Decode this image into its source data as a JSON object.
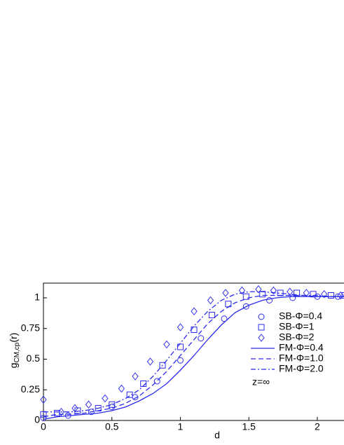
{
  "chart_data": {
    "type": "line",
    "xlabel": "d",
    "ylabel": {
      "base": "g",
      "subscript": "CM,cp",
      "suffix": "(r)"
    },
    "annotation": "z=∞",
    "xlim": [
      0,
      2.2
    ],
    "ylim": [
      0,
      1.12
    ],
    "xticks": [
      0,
      0.5,
      1,
      1.5,
      2
    ],
    "yticks": [
      0,
      0.25,
      0.5,
      0.75,
      1
    ],
    "series": [
      {
        "name": "SB-Φ=0.4",
        "color": "#2b2bef",
        "marker": "circle",
        "x": [
          0.0,
          0.18,
          0.35,
          0.5,
          0.67,
          0.83,
          1.0,
          1.15,
          1.32,
          1.48,
          1.65,
          1.82,
          2.0,
          2.15
        ],
        "values": [
          0.02,
          0.04,
          0.07,
          0.11,
          0.19,
          0.32,
          0.49,
          0.67,
          0.83,
          0.93,
          0.98,
          1.0,
          1.01,
          1.01
        ]
      },
      {
        "name": "SB-Φ=1",
        "color": "#2b2bef",
        "marker": "square",
        "x": [
          0.0,
          0.1,
          0.25,
          0.4,
          0.5,
          0.63,
          0.73,
          0.87,
          1.0,
          1.1,
          1.23,
          1.35,
          1.48,
          1.6,
          1.73,
          1.85,
          1.97,
          2.1,
          2.2
        ],
        "values": [
          0.05,
          0.06,
          0.08,
          0.1,
          0.13,
          0.21,
          0.3,
          0.45,
          0.6,
          0.74,
          0.86,
          0.95,
          1.01,
          1.03,
          1.04,
          1.04,
          1.03,
          1.02,
          1.02
        ]
      },
      {
        "name": "SB-Φ=2",
        "color": "#2b2bef",
        "marker": "diamond",
        "x": [
          0.0,
          0.13,
          0.23,
          0.33,
          0.45,
          0.57,
          0.67,
          0.78,
          0.9,
          1.0,
          1.1,
          1.22,
          1.33,
          1.45,
          1.57,
          1.68,
          1.8,
          1.92,
          2.05,
          2.17
        ],
        "values": [
          0.17,
          0.07,
          0.1,
          0.13,
          0.18,
          0.26,
          0.36,
          0.48,
          0.62,
          0.76,
          0.89,
          0.98,
          1.04,
          1.06,
          1.07,
          1.06,
          1.05,
          1.04,
          1.03,
          1.02
        ]
      },
      {
        "name": "FM-Φ=0.4",
        "color": "#2b2bef",
        "dash": "none",
        "x": [
          0,
          0.1,
          0.2,
          0.3,
          0.4,
          0.5,
          0.6,
          0.7,
          0.8,
          0.9,
          1.0,
          1.1,
          1.2,
          1.3,
          1.4,
          1.5,
          1.6,
          1.7,
          1.8,
          1.9,
          2.0,
          2.1,
          2.2
        ],
        "values": [
          0.01,
          0.03,
          0.04,
          0.05,
          0.06,
          0.08,
          0.11,
          0.16,
          0.22,
          0.3,
          0.41,
          0.53,
          0.66,
          0.78,
          0.88,
          0.94,
          0.98,
          1.0,
          1.01,
          1.01,
          1.01,
          1.01,
          1.01
        ]
      },
      {
        "name": "FM-Φ=1.0",
        "color": "#2b2bef",
        "dash": "7 4",
        "x": [
          0,
          0.1,
          0.2,
          0.3,
          0.4,
          0.5,
          0.6,
          0.7,
          0.8,
          0.9,
          1.0,
          1.1,
          1.2,
          1.3,
          1.4,
          1.5,
          1.6,
          1.7,
          1.8,
          1.9,
          2.0,
          2.1,
          2.2
        ],
        "values": [
          0.03,
          0.05,
          0.05,
          0.06,
          0.08,
          0.1,
          0.14,
          0.2,
          0.29,
          0.4,
          0.53,
          0.66,
          0.79,
          0.89,
          0.96,
          1.0,
          1.02,
          1.02,
          1.02,
          1.02,
          1.01,
          1.01,
          1.01
        ]
      },
      {
        "name": "FM-Φ=2.0",
        "color": "#2b2bef",
        "dash": "7 3 2 3",
        "x": [
          0,
          0.1,
          0.2,
          0.3,
          0.4,
          0.5,
          0.6,
          0.7,
          0.8,
          0.9,
          1.0,
          1.1,
          1.2,
          1.3,
          1.4,
          1.5,
          1.6,
          1.7,
          1.8,
          1.9,
          2.0,
          2.1,
          2.2
        ],
        "values": [
          0.07,
          0.07,
          0.07,
          0.08,
          0.1,
          0.13,
          0.18,
          0.25,
          0.36,
          0.49,
          0.63,
          0.77,
          0.89,
          0.98,
          1.03,
          1.05,
          1.05,
          1.04,
          1.03,
          1.02,
          1.02,
          1.01,
          1.01
        ]
      }
    ]
  }
}
